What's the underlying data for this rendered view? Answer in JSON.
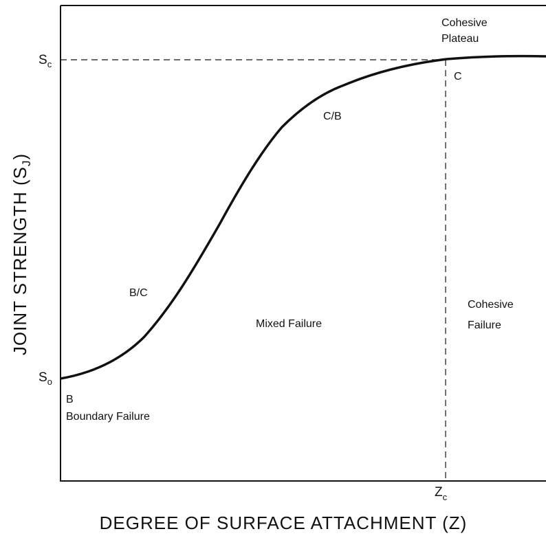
{
  "y_axis_title": {
    "text": "JOINT STRENGTH (S",
    "sub": "J",
    "close": ")"
  },
  "x_axis_title": "DEGREE OF SURFACE ATTACHMENT (Z)",
  "y_markers": [
    {
      "symbol": "S",
      "sub": "c"
    },
    {
      "symbol": "S",
      "sub": "o"
    }
  ],
  "x_marker": {
    "symbol": "Z",
    "sub": "c"
  },
  "annotations": {
    "plateau": [
      "Cohesive",
      "Plateau"
    ],
    "c_point": "C",
    "cb_point": "C/B",
    "bc_point": "B/C",
    "mixed": "Mixed Failure",
    "cohesive_failure": [
      "Cohesive",
      "Failure"
    ],
    "b_point": "B",
    "boundary": "Boundary Failure"
  }
}
